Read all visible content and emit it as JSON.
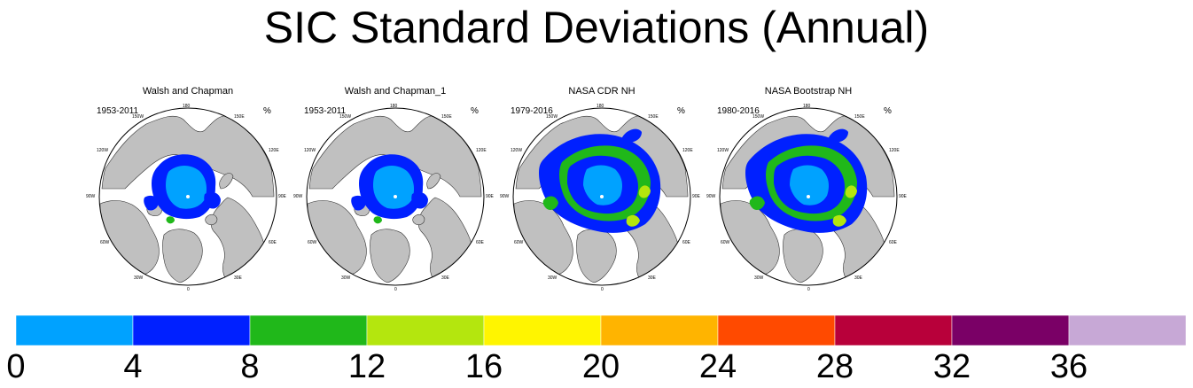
{
  "title": "SIC Standard Deviations (Annual)",
  "colors": {
    "land": "#c0c0c0",
    "ocean": "#ffffff",
    "coast": "#333333",
    "levels": [
      "#00a2ff",
      "#0020ff",
      "#20b81a",
      "#b4e60e",
      "#fff500",
      "#ffb400",
      "#ff4a00",
      "#b8003a",
      "#7a0066",
      "#c7a8d6"
    ]
  },
  "chart_data": {
    "type": "heatmap",
    "units": "%",
    "colorbar": {
      "tick_labels": [
        "0",
        "4",
        "8",
        "12",
        "16",
        "20",
        "24",
        "28",
        "32",
        "36"
      ],
      "levels": [
        0,
        4,
        8,
        12,
        16,
        20,
        24,
        28,
        32,
        36,
        40
      ]
    },
    "map_labels": [
      "180",
      "150E",
      "120E",
      "90E",
      "60E",
      "30E",
      "0",
      "30W",
      "60W",
      "90W",
      "120W",
      "150W"
    ],
    "panels": [
      {
        "title": "Walsh and Chapman",
        "years": "1953-2011",
        "units": "%",
        "pattern": "walsh"
      },
      {
        "title": "Walsh and Chapman_1",
        "years": "1953-2011",
        "units": "%",
        "pattern": "walsh"
      },
      {
        "title": "NASA CDR NH",
        "years": "1979-2016",
        "units": "%",
        "pattern": "satellite"
      },
      {
        "title": "NASA Bootstrap NH",
        "years": "1980-2016",
        "units": "%",
        "pattern": "satellite"
      }
    ]
  }
}
